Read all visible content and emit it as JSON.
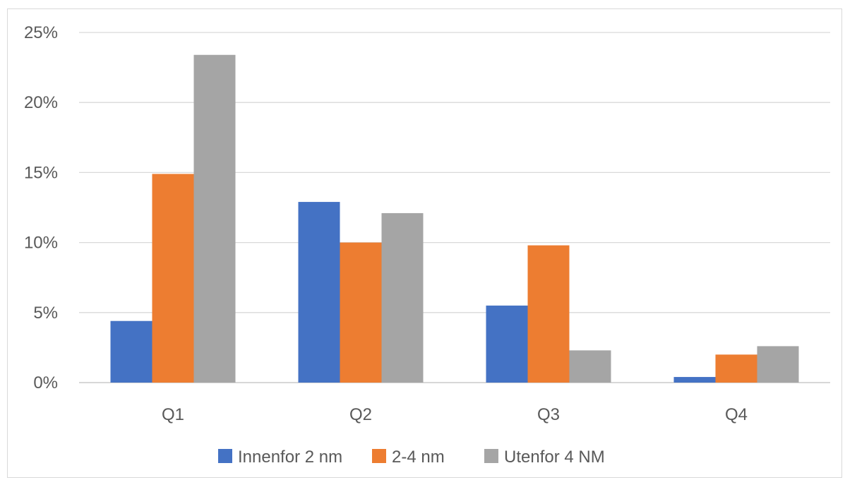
{
  "chart_data": {
    "type": "bar",
    "categories": [
      "Q1",
      "Q2",
      "Q3",
      "Q4"
    ],
    "series": [
      {
        "name": "Innenfor 2 nm",
        "color": "#4472C4",
        "values": [
          4.4,
          12.9,
          5.5,
          0.4
        ]
      },
      {
        "name": "2-4 nm",
        "color": "#ED7D31",
        "values": [
          14.9,
          10.0,
          9.8,
          2.0
        ]
      },
      {
        "name": "Utenfor 4 NM",
        "color": "#A5A5A5",
        "values": [
          23.4,
          12.1,
          2.3,
          2.6
        ]
      }
    ],
    "ylim": [
      0,
      25
    ],
    "yticks": [
      "0%",
      "5%",
      "10%",
      "15%",
      "20%",
      "25%"
    ],
    "ytick_values": [
      0,
      5,
      10,
      15,
      20,
      25
    ],
    "grid": true,
    "legend_position": "bottom",
    "title": "",
    "xlabel": "",
    "ylabel": ""
  }
}
